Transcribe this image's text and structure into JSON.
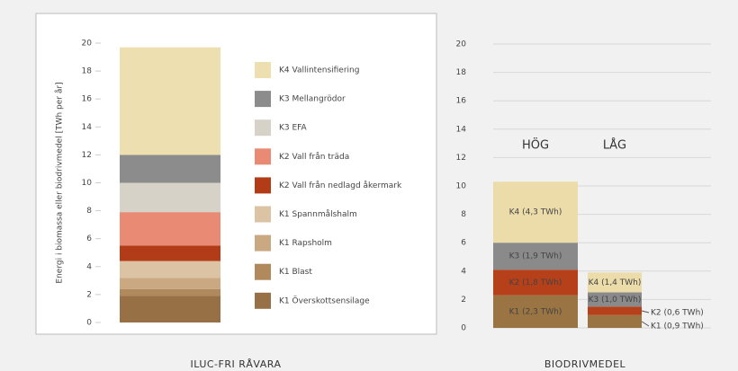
{
  "chart_data": [
    {
      "type": "stacked_bar",
      "y_label": "Energi i biomassa eller biodrivmedel [TWh per år]",
      "x_label": "ILUC-FRI RÅVARA",
      "categories": [
        null
      ],
      "ylim": [
        0,
        20
      ],
      "yticks": [
        0,
        2,
        4,
        6,
        8,
        10,
        12,
        14,
        16,
        18,
        20
      ],
      "grid": false,
      "legend": "right",
      "series": [
        {
          "name": "K1 Överskottsensilage",
          "color": "#977045",
          "values": [
            1.9
          ]
        },
        {
          "name": "K1 Blast",
          "color": "#b08a5c",
          "values": [
            0.5
          ]
        },
        {
          "name": "K1 Rapsholm",
          "color": "#c9a882",
          "values": [
            0.8
          ]
        },
        {
          "name": "K1 Spannmålshalm",
          "color": "#dcc3a4",
          "values": [
            1.2
          ]
        },
        {
          "name": "K2 Vall från nedlagd åkermark",
          "color": "#b33c18",
          "values": [
            1.1
          ]
        },
        {
          "name": "K2 Vall från träda",
          "color": "#e98a74",
          "values": [
            2.4
          ]
        },
        {
          "name": "K3 EFA",
          "color": "#d6d2c8",
          "values": [
            2.1
          ]
        },
        {
          "name": "K3 Mellangrödor",
          "color": "#8c8c8c",
          "values": [
            2.0
          ]
        },
        {
          "name": "K4 Vallintensifiering",
          "color": "#eedfb0",
          "values": [
            7.7
          ]
        }
      ]
    },
    {
      "type": "stacked_bar",
      "x_label": "BIODRIVMEDEL",
      "categories": [
        "HÖG",
        "LÅG"
      ],
      "ylim": [
        0,
        20
      ],
      "yticks": [
        0,
        2,
        4,
        6,
        8,
        10,
        12,
        14,
        16,
        18,
        20
      ],
      "grid": true,
      "series": [
        {
          "color": "#9a7442",
          "values": [
            2.3,
            0.9
          ],
          "value_labels": [
            "K1 (2,3 TWh)",
            "K1 (0,9 TWh)"
          ]
        },
        {
          "color": "#b5401a",
          "values": [
            1.8,
            0.6
          ],
          "value_labels": [
            "K2 (1,8 TWh)",
            "K2 (0,6 TWh)"
          ]
        },
        {
          "color": "#8a8a8a",
          "values": [
            1.9,
            1.0
          ],
          "value_labels": [
            "K3 (1,9 TWh)",
            "K3 (1,0 TWh)"
          ]
        },
        {
          "color": "#ecdcaa",
          "values": [
            4.3,
            1.4
          ],
          "value_labels": [
            "K4 (4,3 TWh)",
            "K4 (1,4 TWh)"
          ]
        }
      ]
    }
  ]
}
